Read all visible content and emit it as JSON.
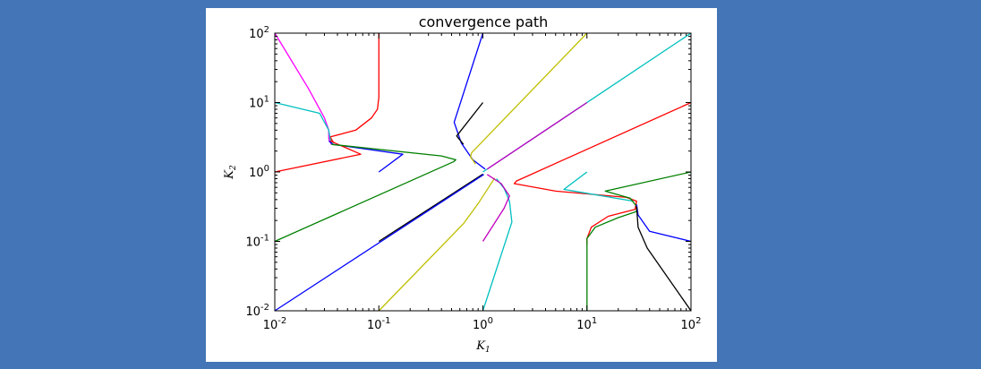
{
  "chart_data": {
    "type": "line",
    "title": "convergence path",
    "xlabel": "K",
    "xlabel_sub": "1",
    "ylabel": "K",
    "ylabel_sub": "2",
    "xscale": "log",
    "yscale": "log",
    "xlim": [
      0.01,
      100
    ],
    "ylim": [
      0.01,
      100
    ],
    "grid": false,
    "legend": "none",
    "x_ticks": [
      {
        "value": 0.01,
        "base": "10",
        "exp": "-2"
      },
      {
        "value": 0.1,
        "base": "10",
        "exp": "-1"
      },
      {
        "value": 1,
        "base": "10",
        "exp": "0"
      },
      {
        "value": 10,
        "base": "10",
        "exp": "1"
      },
      {
        "value": 100,
        "base": "10",
        "exp": "2"
      }
    ],
    "y_ticks": [
      {
        "value": 0.01,
        "base": "10",
        "exp": "-2"
      },
      {
        "value": 0.1,
        "base": "10",
        "exp": "-1"
      },
      {
        "value": 1,
        "base": "10",
        "exp": "0"
      },
      {
        "value": 10,
        "base": "10",
        "exp": "1"
      },
      {
        "value": 100,
        "base": "10",
        "exp": "2"
      }
    ],
    "series": [
      {
        "color": "#ff00ff",
        "points": [
          [
            0.01,
            100
          ],
          [
            0.021,
            16
          ],
          [
            0.03,
            6
          ],
          [
            0.033,
            4
          ],
          [
            0.033,
            3
          ],
          [
            0.035,
            2.5
          ]
        ]
      },
      {
        "color": "#ff0000",
        "points": [
          [
            0.1,
            100
          ],
          [
            0.1,
            12
          ],
          [
            0.097,
            8
          ],
          [
            0.085,
            6
          ],
          [
            0.06,
            4
          ],
          [
            0.034,
            3.2
          ],
          [
            0.037,
            2.6
          ]
        ]
      },
      {
        "color": "#00bfbf",
        "points": [
          [
            0.01,
            10
          ],
          [
            0.027,
            7
          ],
          [
            0.033,
            4
          ],
          [
            0.034,
            3
          ],
          [
            0.036,
            2.5
          ]
        ]
      },
      {
        "color": "#0000ff",
        "points": [
          [
            0.1,
            1
          ],
          [
            0.17,
            1.8
          ],
          [
            0.036,
            2.5
          ],
          [
            0.033,
            2.8
          ]
        ]
      },
      {
        "color": "#ff0000",
        "points": [
          [
            0.01,
            1
          ],
          [
            0.067,
            1.8
          ],
          [
            0.034,
            2.8
          ]
        ]
      },
      {
        "color": "#008000",
        "points": [
          [
            0.01,
            0.1
          ],
          [
            0.52,
            1.4
          ],
          [
            0.55,
            1.5
          ],
          [
            0.4,
            1.7
          ],
          [
            0.035,
            2.5
          ]
        ]
      },
      {
        "color": "#000000",
        "points": [
          [
            0.1,
            0.1
          ],
          [
            1,
            0.93
          ]
        ]
      },
      {
        "color": "#0000ff",
        "points": [
          [
            0.01,
            0.01
          ],
          [
            1.02,
            0.92
          ]
        ]
      },
      {
        "color": "#bfbf00",
        "points": [
          [
            0.1,
            0.01
          ],
          [
            0.65,
            0.18
          ],
          [
            0.9,
            0.35
          ],
          [
            1.3,
            0.82
          ]
        ]
      },
      {
        "color": "#00bfbf",
        "points": [
          [
            1,
            0.01
          ],
          [
            1.9,
            0.19
          ],
          [
            1.8,
            0.38
          ],
          [
            1.6,
            0.58
          ],
          [
            1.35,
            0.8
          ]
        ]
      },
      {
        "color": "#bf00bf",
        "points": [
          [
            1,
            0.1
          ],
          [
            1.6,
            0.3
          ],
          [
            1.8,
            0.45
          ],
          [
            1.5,
            0.68
          ],
          [
            1.1,
            0.92
          ]
        ]
      },
      {
        "color": "#0000ff",
        "points": [
          [
            1,
            100
          ],
          [
            0.53,
            5.2
          ],
          [
            0.62,
            2.6
          ],
          [
            0.8,
            1.5
          ],
          [
            1.05,
            1.1
          ]
        ]
      },
      {
        "color": "#000000",
        "points": [
          [
            1,
            10
          ],
          [
            0.56,
            3.3
          ],
          [
            0.65,
            2.5
          ]
        ]
      },
      {
        "color": "#bfbf00",
        "points": [
          [
            10,
            100
          ],
          [
            0.78,
            1.9
          ],
          [
            0.76,
            1.65
          ],
          [
            0.85,
            1.3
          ]
        ]
      },
      {
        "color": "#00bfbf",
        "points": [
          [
            100,
            100
          ],
          [
            1,
            1
          ]
        ]
      },
      {
        "color": "#bf00bf",
        "points": [
          [
            10,
            10
          ],
          [
            1.1,
            1.1
          ]
        ]
      },
      {
        "color": "#ff0000",
        "points": [
          [
            100,
            10
          ],
          [
            2.1,
            0.74
          ],
          [
            2.0,
            0.68
          ],
          [
            5,
            0.53
          ],
          [
            24,
            0.43
          ],
          [
            30,
            0.38
          ],
          [
            29,
            0.29
          ],
          [
            16,
            0.23
          ],
          [
            11,
            0.16
          ],
          [
            10,
            0.11
          ],
          [
            10,
            0.09
          ]
        ]
      },
      {
        "color": "#00bfbf",
        "points": [
          [
            10,
            1
          ],
          [
            6,
            0.56
          ],
          [
            28,
            0.38
          ]
        ]
      },
      {
        "color": "#008000",
        "points": [
          [
            100,
            1
          ],
          [
            15,
            0.53
          ],
          [
            26,
            0.42
          ],
          [
            30,
            0.32
          ],
          [
            30,
            0.27
          ],
          [
            20,
            0.22
          ],
          [
            12,
            0.16
          ],
          [
            10,
            0.11
          ],
          [
            10,
            0.01
          ]
        ]
      },
      {
        "color": "#0000ff",
        "points": [
          [
            100,
            0.1
          ],
          [
            40,
            0.14
          ],
          [
            31,
            0.24
          ],
          [
            30,
            0.34
          ]
        ]
      },
      {
        "color": "#000000",
        "points": [
          [
            100,
            0.01
          ],
          [
            38,
            0.08
          ],
          [
            31,
            0.16
          ],
          [
            30,
            0.32
          ]
        ]
      }
    ]
  }
}
